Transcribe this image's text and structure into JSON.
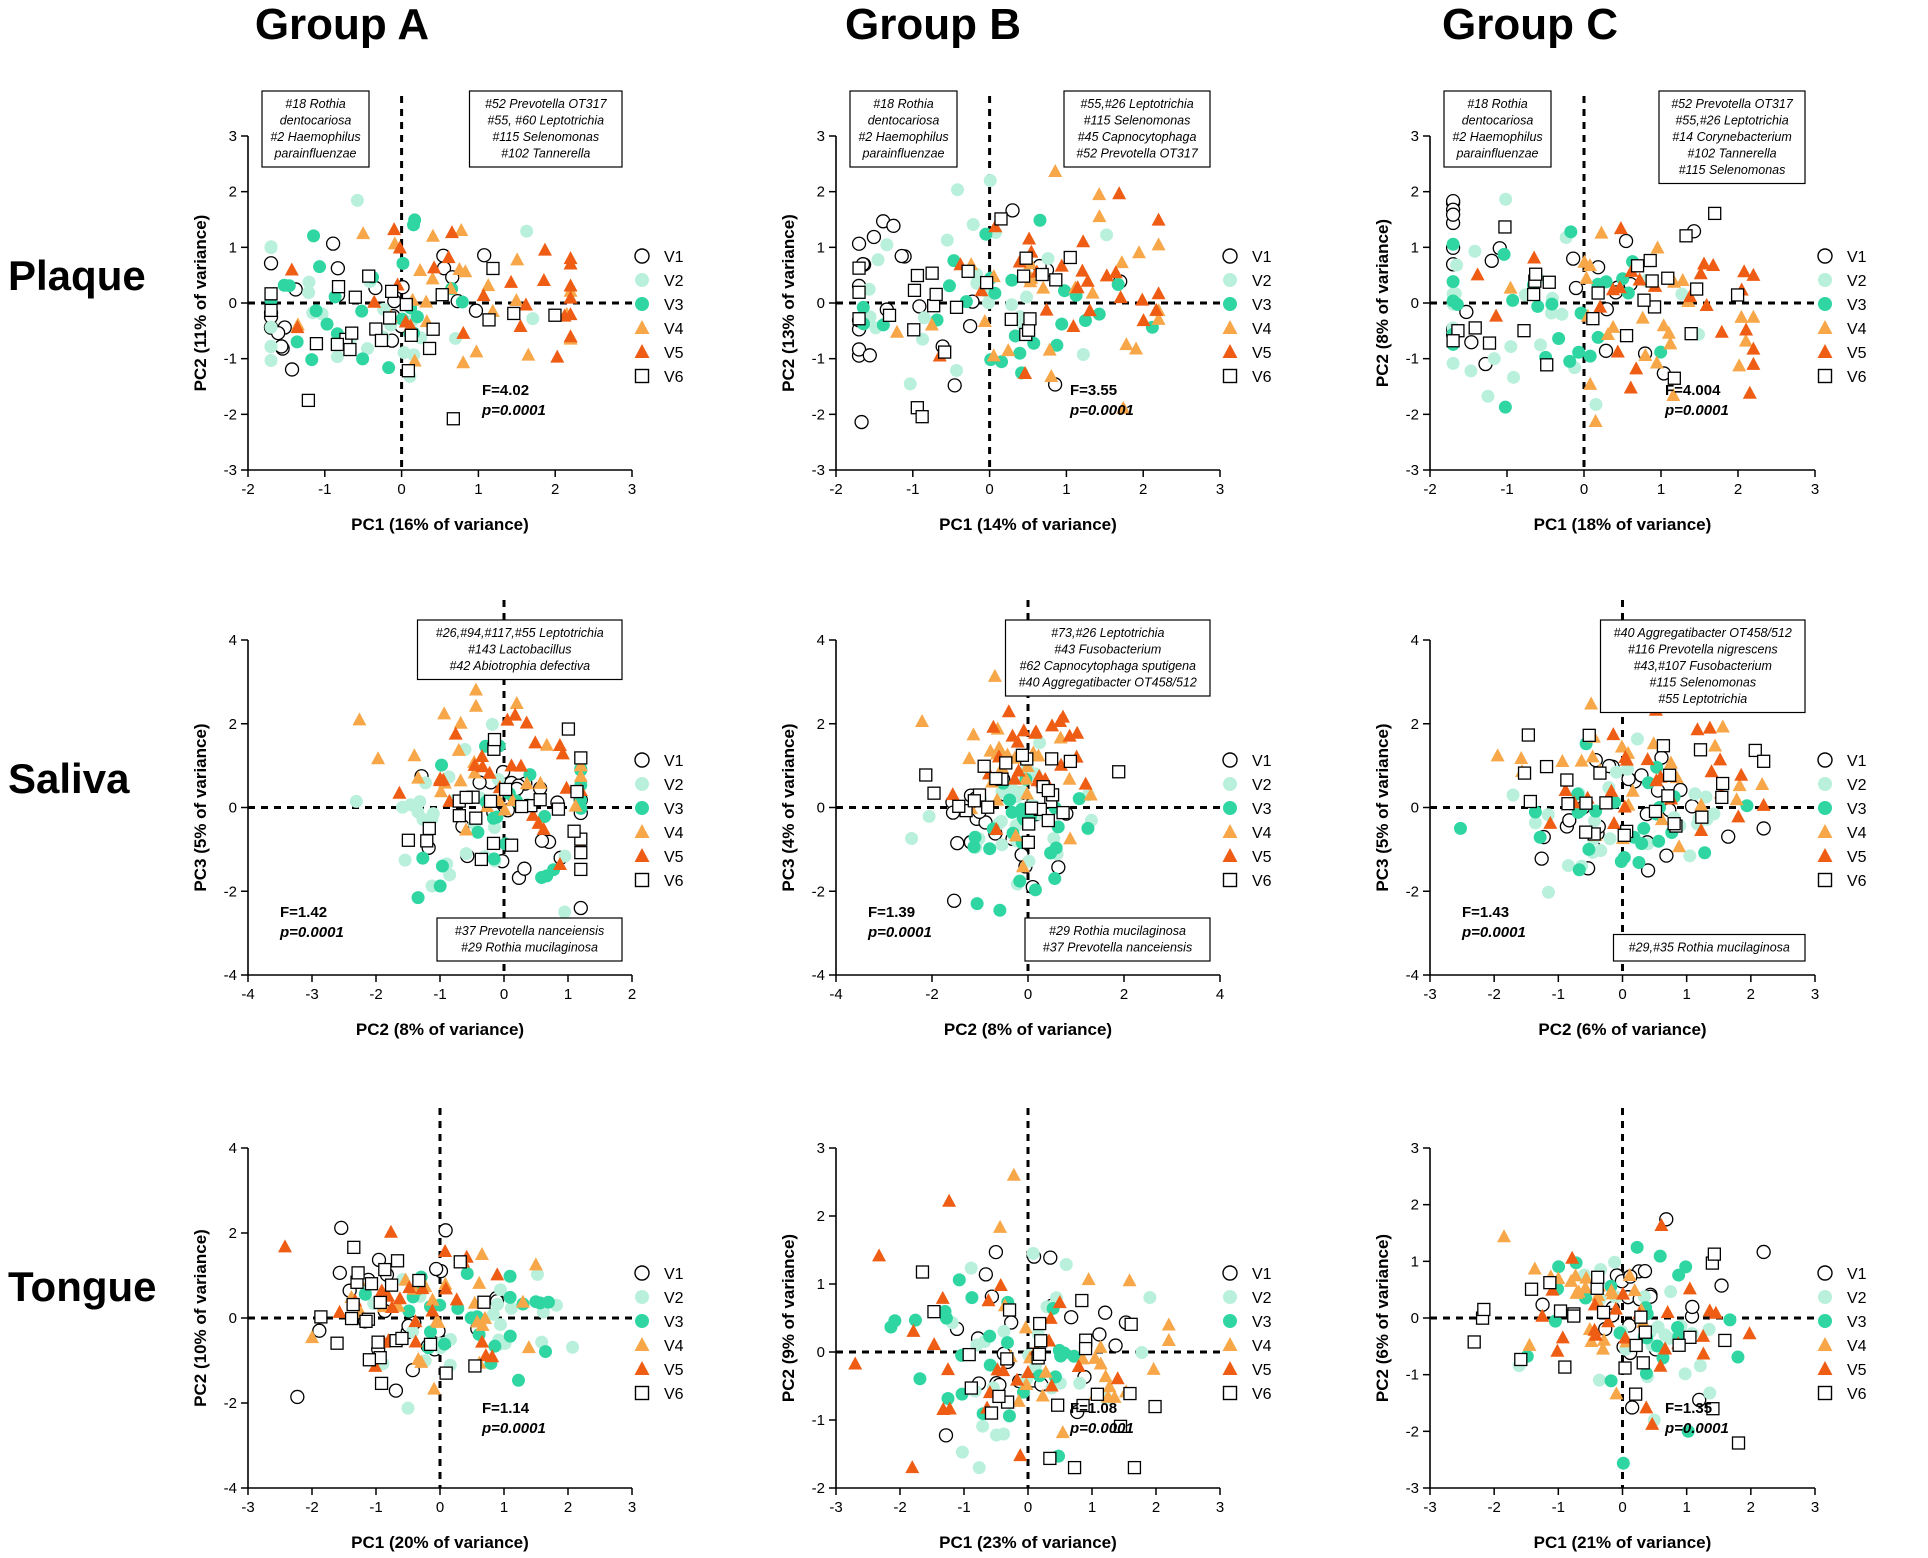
{
  "column_titles": [
    "Group A",
    "Group B",
    "Group C"
  ],
  "row_titles": [
    "Plaque",
    "Saliva",
    "Tongue"
  ],
  "legend": [
    "V1",
    "V2",
    "V3",
    "V4",
    "V5",
    "V6"
  ],
  "colors": {
    "V1": "#ffffff",
    "V2": "#b9f0dc",
    "V3": "#2fd6a2",
    "V4": "#f7a648",
    "V5": "#ef5c14",
    "V6": "#ffffff",
    "outline": "#000000"
  },
  "chart_data": [
    {
      "type": "scatter",
      "group": "Group A",
      "sample": "Plaque",
      "xlabel": "PC1 (16%  of variance)",
      "ylabel": "PC2 (11% of variance)",
      "xlim": [
        -2,
        3
      ],
      "ylim": [
        -3,
        3
      ],
      "xticks": [
        -2,
        -1,
        0,
        1,
        2,
        3
      ],
      "yticks": [
        -3,
        -2,
        -1,
        0,
        1,
        2,
        3
      ],
      "f_label": "F=4.02",
      "p_label": "p=0.0001",
      "seed": 11,
      "spread": [
        1.05,
        0.75
      ],
      "centers": [
        [
          -0.6,
          0.1
        ],
        [
          -0.8,
          -0.2
        ],
        [
          -0.5,
          0.0
        ],
        [
          1.0,
          0.1
        ],
        [
          1.0,
          0.2
        ],
        [
          -0.2,
          -0.5
        ]
      ],
      "annotations": [
        {
          "pos": "top-left",
          "lines": [
            "#18 Rothia",
            "dentocariosa",
            "#2 Haemophilus",
            "parainfluenzae"
          ]
        },
        {
          "pos": "top-right",
          "lines": [
            "#52 Prevotella OT317",
            "#55, #60 Leptotrichia",
            "#115 Selenomonas",
            "#102 Tannerella"
          ]
        }
      ]
    },
    {
      "type": "scatter",
      "group": "Group B",
      "sample": "Plaque",
      "xlabel": "PC1 (14%  of variance)",
      "ylabel": "PC2 (13% of variance)",
      "xlim": [
        -2,
        3
      ],
      "ylim": [
        -3,
        3
      ],
      "xticks": [
        -2,
        -1,
        0,
        1,
        2,
        3
      ],
      "yticks": [
        -3,
        -2,
        -1,
        0,
        1,
        2,
        3
      ],
      "f_label": "F=3.55",
      "p_label": "p=0.0001",
      "seed": 23,
      "spread": [
        1.0,
        0.8
      ],
      "centers": [
        [
          -0.6,
          -0.1
        ],
        [
          -0.3,
          0.2
        ],
        [
          -0.4,
          0.0
        ],
        [
          0.9,
          -0.1
        ],
        [
          0.8,
          0.3
        ],
        [
          -0.3,
          0.1
        ]
      ],
      "annotations": [
        {
          "pos": "top-left",
          "lines": [
            "#18 Rothia",
            "dentocariosa",
            "#2 Haemophilus",
            "parainfluenzae"
          ]
        },
        {
          "pos": "top-right",
          "lines": [
            "#55,#26 Leptotrichia",
            "#115 Selenomonas",
            "#45 Capnocytophaga",
            "#52 Prevotella OT317"
          ]
        }
      ]
    },
    {
      "type": "scatter",
      "group": "Group C",
      "sample": "Plaque",
      "xlabel": "PC1 (18%  of variance)",
      "ylabel": "PC2 (8% of variance)",
      "xlim": [
        -2,
        3
      ],
      "ylim": [
        -3,
        3
      ],
      "xticks": [
        -2,
        -1,
        0,
        1,
        2,
        3
      ],
      "yticks": [
        -3,
        -2,
        -1,
        0,
        1,
        2,
        3
      ],
      "f_label": "F=4.004",
      "p_label": "p=0.0001",
      "seed": 37,
      "spread": [
        1.0,
        0.85
      ],
      "centers": [
        [
          -0.7,
          0.2
        ],
        [
          -0.8,
          -0.2
        ],
        [
          -0.5,
          0.0
        ],
        [
          0.9,
          -0.1
        ],
        [
          1.0,
          0.0
        ],
        [
          -0.4,
          0.1
        ]
      ],
      "annotations": [
        {
          "pos": "top-left",
          "lines": [
            "#18 Rothia",
            "dentocariosa",
            "#2 Haemophilus",
            "parainfluenzae"
          ]
        },
        {
          "pos": "top-right",
          "lines": [
            "#52 Prevotella OT317",
            "#55,#26 Leptotrichia",
            "#14 Corynebacterium",
            "#102 Tannerella",
            "#115 Selenomonas"
          ]
        }
      ]
    },
    {
      "type": "scatter",
      "group": "Group A",
      "sample": "Saliva",
      "xlabel": "PC2 (8%  of variance)",
      "ylabel": "PC3 (5% of variance)",
      "xlim": [
        -4,
        2
      ],
      "ylim": [
        -4,
        4
      ],
      "xticks": [
        -4,
        -3,
        -2,
        -1,
        0,
        1,
        2
      ],
      "yticks": [
        -4,
        -2,
        0,
        2,
        4
      ],
      "f_label": "F=1.42",
      "p_label": "p=0.0001",
      "seed": 41,
      "spread": [
        0.9,
        0.9
      ],
      "centers": [
        [
          0.2,
          -0.3
        ],
        [
          -0.2,
          -0.2
        ],
        [
          0.1,
          -0.3
        ],
        [
          -0.3,
          0.8
        ],
        [
          0.0,
          0.9
        ],
        [
          0.0,
          -0.2
        ]
      ],
      "annotations": [
        {
          "pos": "top-right",
          "lines": [
            "#26,#94,#117,#55 Leptotrichia",
            "#143 Lactobacillus",
            "#42 Abiotrophia defectiva"
          ]
        },
        {
          "pos": "bottom-right",
          "lines": [
            "#37 Prevotella nanceiensis",
            "#29 Rothia mucilaginosa"
          ]
        }
      ]
    },
    {
      "type": "scatter",
      "group": "Group B",
      "sample": "Saliva",
      "xlabel": "PC2 (8%  of variance)",
      "ylabel": "PC3 (4% of variance)",
      "xlim": [
        -4,
        4
      ],
      "ylim": [
        -4,
        4
      ],
      "xticks": [
        -4,
        -2,
        0,
        2,
        4
      ],
      "yticks": [
        -4,
        -2,
        0,
        2,
        4
      ],
      "f_label": "F=1.39",
      "p_label": "p=0.0001",
      "seed": 53,
      "spread": [
        0.8,
        0.85
      ],
      "centers": [
        [
          -0.5,
          -0.2
        ],
        [
          -0.3,
          -0.3
        ],
        [
          -0.1,
          -0.5
        ],
        [
          -0.2,
          1.0
        ],
        [
          0.2,
          1.0
        ],
        [
          -0.3,
          0.1
        ]
      ],
      "annotations": [
        {
          "pos": "top-right",
          "lines": [
            "#73,#26 Leptotrichia",
            "#43 Fusobacterium",
            "#62 Capnocytophaga sputigena",
            "#40 Aggregatibacter OT458/512"
          ]
        },
        {
          "pos": "bottom-right",
          "lines": [
            "#29 Rothia mucilaginosa",
            "#37 Prevotella nanceiensis"
          ]
        }
      ]
    },
    {
      "type": "scatter",
      "group": "Group C",
      "sample": "Saliva",
      "xlabel": "PC2 (6%  of variance)",
      "ylabel": "PC3 (5% of variance)",
      "xlim": [
        -3,
        3
      ],
      "ylim": [
        -4,
        4
      ],
      "xticks": [
        -3,
        -2,
        -1,
        0,
        1,
        2,
        3
      ],
      "yticks": [
        -4,
        -2,
        0,
        2,
        4
      ],
      "f_label": "F=1.43",
      "p_label": "p=0.0001",
      "seed": 67,
      "spread": [
        0.9,
        0.8
      ],
      "centers": [
        [
          0.3,
          -0.4
        ],
        [
          -0.2,
          -0.4
        ],
        [
          0.1,
          -0.6
        ],
        [
          0.0,
          0.7
        ],
        [
          0.3,
          0.8
        ],
        [
          -0.2,
          0.1
        ]
      ],
      "annotations": [
        {
          "pos": "top-right",
          "lines": [
            "#40 Aggregatibacter OT458/512",
            "#116 Prevotella nigrescens",
            "#43,#107 Fusobacterium",
            "#115 Selenomonas",
            "#55 Leptotrichia"
          ]
        },
        {
          "pos": "bottom-right",
          "lines": [
            "#29,#35 Rothia mucilaginosa"
          ]
        }
      ]
    },
    {
      "type": "scatter",
      "group": "Group A",
      "sample": "Tongue",
      "xlabel": "PC1 (20%  of variance)",
      "ylabel": "PC2 (10% of variance)",
      "xlim": [
        -3,
        3
      ],
      "ylim": [
        -4,
        4
      ],
      "xticks": [
        -3,
        -2,
        -1,
        0,
        1,
        2,
        3
      ],
      "yticks": [
        -4,
        -2,
        0,
        2,
        4
      ],
      "f_label": "F=1.14",
      "p_label": "p=0.0001",
      "seed": 71,
      "spread": [
        0.95,
        0.9
      ],
      "centers": [
        [
          -0.2,
          0.0
        ],
        [
          0.3,
          -0.3
        ],
        [
          0.4,
          -0.2
        ],
        [
          -0.1,
          0.3
        ],
        [
          -0.3,
          0.2
        ],
        [
          -0.6,
          0.0
        ]
      ],
      "annotations": []
    },
    {
      "type": "scatter",
      "group": "Group B",
      "sample": "Tongue",
      "xlabel": "PC1 (23%  of variance)",
      "ylabel": "PC2 (9% of variance)",
      "xlim": [
        -3,
        3
      ],
      "ylim": [
        -2,
        3
      ],
      "xticks": [
        -3,
        -2,
        -1,
        0,
        1,
        2,
        3
      ],
      "yticks": [
        -2,
        -1,
        0,
        1,
        2,
        3
      ],
      "f_label": "F=1.08",
      "p_label": "p=0.0001",
      "seed": 89,
      "spread": [
        0.9,
        0.85
      ],
      "centers": [
        [
          0.3,
          0.2
        ],
        [
          0.0,
          -0.2
        ],
        [
          -0.2,
          0.0
        ],
        [
          0.6,
          0.3
        ],
        [
          -0.5,
          -0.2
        ],
        [
          0.4,
          -0.3
        ]
      ],
      "annotations": []
    },
    {
      "type": "scatter",
      "group": "Group C",
      "sample": "Tongue",
      "xlabel": "PC1 (21%  of variance)",
      "ylabel": "PC2 (6% of variance)",
      "xlim": [
        -3,
        3
      ],
      "ylim": [
        -3,
        3
      ],
      "xticks": [
        -3,
        -2,
        -1,
        0,
        1,
        2,
        3
      ],
      "yticks": [
        -3,
        -2,
        -1,
        0,
        1,
        2,
        3
      ],
      "f_label": "F=1.35",
      "p_label": "p=0.0001",
      "seed": 97,
      "spread": [
        0.9,
        0.8
      ],
      "centers": [
        [
          -0.2,
          0.1
        ],
        [
          0.2,
          -0.2
        ],
        [
          0.1,
          -0.2
        ],
        [
          -0.3,
          0.3
        ],
        [
          -0.1,
          -0.1
        ],
        [
          -0.4,
          -0.3
        ]
      ],
      "annotations": []
    }
  ]
}
